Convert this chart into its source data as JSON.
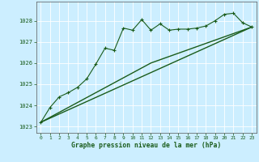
{
  "title": "Graphe pression niveau de la mer (hPa)",
  "background_color": "#cceeff",
  "line_color": "#1a5c1a",
  "grid_color": "#ffffff",
  "xlim": [
    -0.5,
    23.5
  ],
  "ylim": [
    1022.7,
    1028.9
  ],
  "yticks": [
    1023,
    1024,
    1025,
    1026,
    1027,
    1028
  ],
  "xticks": [
    0,
    1,
    2,
    3,
    4,
    5,
    6,
    7,
    8,
    9,
    10,
    11,
    12,
    13,
    14,
    15,
    16,
    17,
    18,
    19,
    20,
    21,
    22,
    23
  ],
  "series1_x": [
    0,
    1,
    2,
    3,
    4,
    5,
    6,
    7,
    8,
    9,
    10,
    11,
    12,
    13,
    14,
    15,
    16,
    17,
    18,
    19,
    20,
    21,
    22,
    23
  ],
  "series1_y": [
    1023.2,
    1023.9,
    1024.4,
    1024.6,
    1024.85,
    1025.25,
    1025.95,
    1026.7,
    1026.6,
    1027.65,
    1027.55,
    1028.05,
    1027.55,
    1027.85,
    1027.55,
    1027.6,
    1027.6,
    1027.65,
    1027.75,
    1028.0,
    1028.3,
    1028.35,
    1027.9,
    1027.7
  ],
  "series2_x": [
    0,
    23
  ],
  "series2_y": [
    1023.2,
    1027.7
  ],
  "series3_x": [
    0,
    12,
    23
  ],
  "series3_y": [
    1023.2,
    1026.0,
    1027.7
  ]
}
